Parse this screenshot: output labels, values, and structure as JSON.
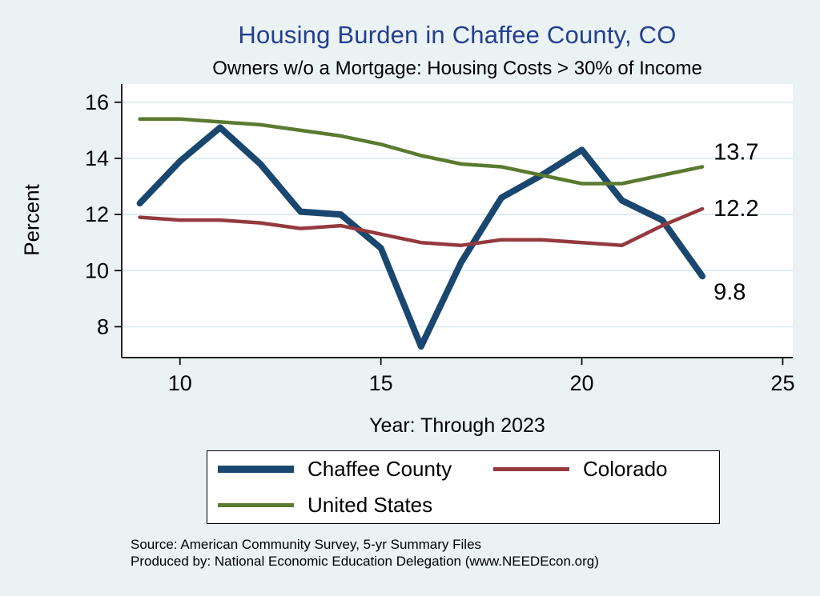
{
  "title": "Housing Burden in Chaffee County, CO",
  "subtitle": "Owners w/o a Mortgage: Housing Costs > 30% of Income",
  "chart_data": {
    "type": "line",
    "title": "Housing Burden in Chaffee County, CO",
    "subtitle": "Owners w/o a Mortgage: Housing Costs > 30% of Income",
    "xlabel": "Year: Through 2023",
    "ylabel": "Percent",
    "x": [
      9,
      10,
      11,
      12,
      13,
      14,
      15,
      16,
      17,
      18,
      19,
      20,
      21,
      22,
      23
    ],
    "x_meaning": "survey year 2009 through 2023",
    "series": [
      {
        "name": "Chaffee County",
        "color": "#1a476f",
        "line_width": 8,
        "values": [
          12.4,
          13.9,
          15.1,
          13.8,
          12.1,
          12.0,
          10.8,
          7.3,
          10.3,
          12.6,
          13.4,
          14.3,
          12.5,
          11.8,
          9.8
        ],
        "end_label": "9.8",
        "end_label_dy": 20
      },
      {
        "name": "Colorado",
        "color": "#943a3e",
        "line_width": 4.5,
        "values": [
          11.9,
          11.8,
          11.8,
          11.7,
          11.5,
          11.6,
          11.3,
          11.0,
          10.9,
          11.1,
          11.1,
          11.0,
          10.9,
          11.6,
          12.2
        ],
        "end_label": "12.2",
        "end_label_dy": 0
      },
      {
        "name": "United States",
        "color": "#5a7a2f",
        "line_width": 4.5,
        "values": [
          15.4,
          15.4,
          15.3,
          15.2,
          15.0,
          14.8,
          14.5,
          14.1,
          13.8,
          13.7,
          13.4,
          13.1,
          13.1,
          13.4,
          13.7
        ],
        "end_label": "13.7",
        "end_label_dy": -18
      }
    ],
    "xticks": [
      10,
      15,
      20,
      25
    ],
    "yticks": [
      8,
      10,
      12,
      14,
      16
    ],
    "xlim": [
      8.55,
      25.25
    ],
    "ylim": [
      6.9,
      16.65
    ],
    "grid": "horizontal",
    "grid_color": "#d4e8f2",
    "plot_background": "#ffffff",
    "page_background": "#eaf2f3",
    "title_color": "#243f8f",
    "legend_position": "bottom"
  },
  "legend": {
    "items": [
      {
        "label": "Chaffee County",
        "color": "#1a476f",
        "thickness": 9
      },
      {
        "label": "Colorado",
        "color": "#943a3e",
        "thickness": 5
      },
      {
        "label": "United States",
        "color": "#5a7a2f",
        "thickness": 5
      }
    ]
  },
  "notes": [
    "Source: American Community Survey, 5-yr Summary Files",
    "Produced by: National Economic Education Delegation (www.NEEDEcon.org)"
  ]
}
